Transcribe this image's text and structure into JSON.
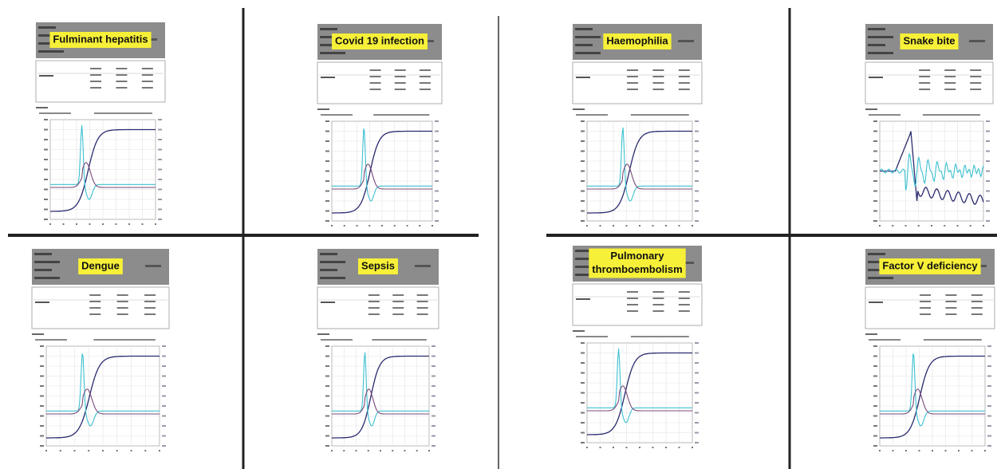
{
  "panels": [
    {
      "label_lines": [
        "Fulminant hepatitis"
      ]
    },
    {
      "label_lines": [
        "Covid 19 infection"
      ]
    },
    {
      "label_lines": [
        "Haemophilia"
      ]
    },
    {
      "label_lines": [
        "Snake bite"
      ]
    },
    {
      "label_lines": [
        "Dengue"
      ]
    },
    {
      "label_lines": [
        "Sepsis"
      ]
    },
    {
      "label_lines": [
        "Pulmonary",
        "thromboembolism"
      ]
    },
    {
      "label_lines": [
        "Factor V deficiency"
      ]
    }
  ]
}
